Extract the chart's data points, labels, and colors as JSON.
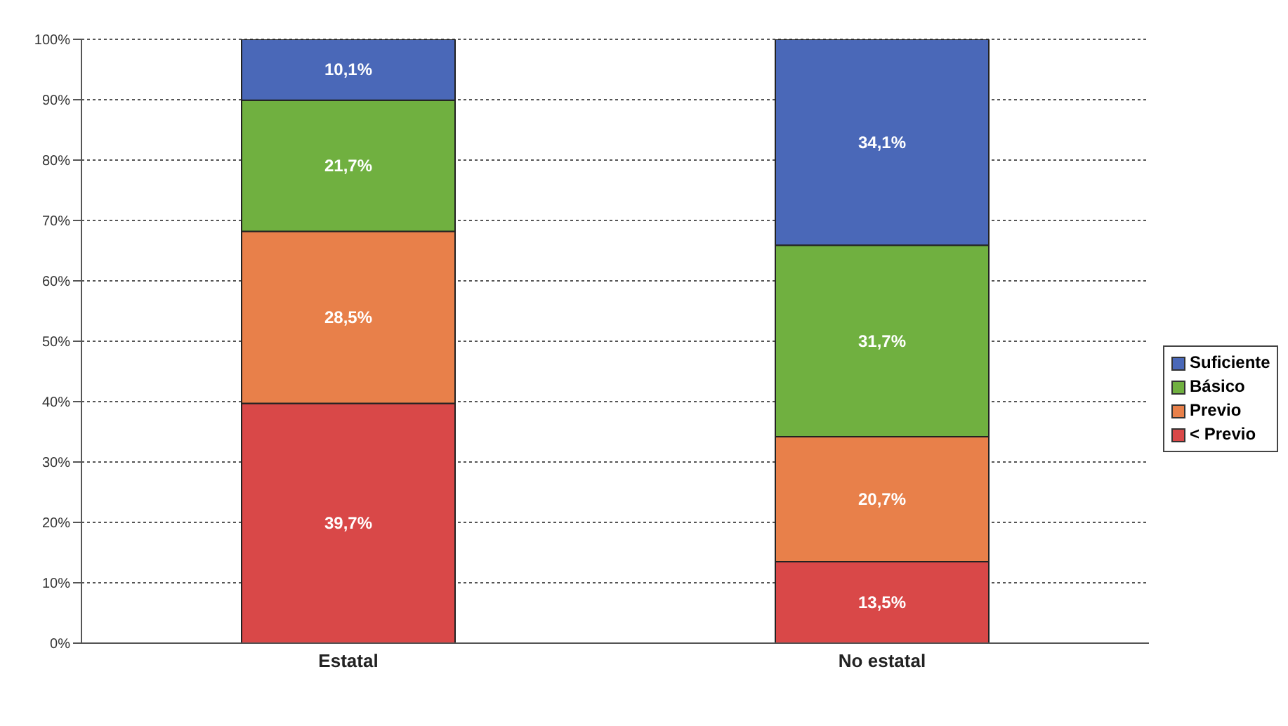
{
  "chart_data": {
    "type": "bar",
    "stacked": true,
    "categories": [
      "Estatal",
      "No estatal"
    ],
    "series": [
      {
        "name": "< Previo",
        "color": "#d94848",
        "values": [
          39.7,
          13.5
        ],
        "value_labels": [
          "39,7%",
          "13,5%"
        ]
      },
      {
        "name": "Previo",
        "color": "#e8804a",
        "values": [
          28.5,
          20.7
        ],
        "value_labels": [
          "28,5%",
          "20,7%"
        ]
      },
      {
        "name": "Básico",
        "color": "#70b040",
        "values": [
          21.7,
          31.7
        ],
        "value_labels": [
          "21,7%",
          "31,7%"
        ]
      },
      {
        "name": "Suficiente",
        "color": "#4a68b8",
        "values": [
          10.1,
          34.1
        ],
        "value_labels": [
          "10,1%",
          "34,1%"
        ]
      }
    ],
    "ylim": [
      0,
      100
    ],
    "yticks": [
      {
        "value": 0,
        "label": "0%"
      },
      {
        "value": 10,
        "label": "10%"
      },
      {
        "value": 20,
        "label": "20%"
      },
      {
        "value": 30,
        "label": "30%"
      },
      {
        "value": 40,
        "label": "40%"
      },
      {
        "value": 50,
        "label": "50%"
      },
      {
        "value": 60,
        "label": "60%"
      },
      {
        "value": 70,
        "label": "70%"
      },
      {
        "value": 80,
        "label": "80%"
      },
      {
        "value": 90,
        "label": "90%"
      },
      {
        "value": 100,
        "label": "100%"
      }
    ],
    "grid": "y",
    "legend": "right"
  }
}
